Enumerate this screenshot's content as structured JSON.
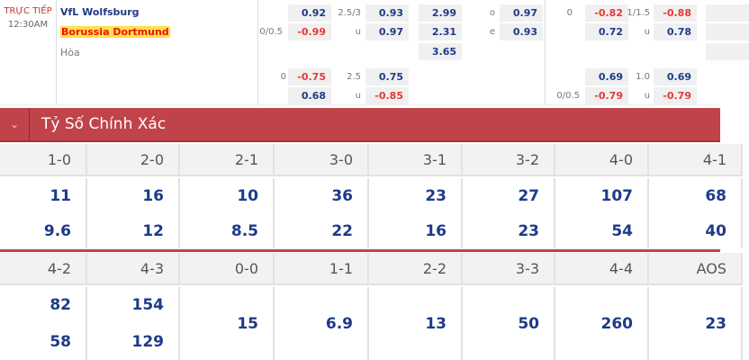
{
  "match": {
    "status": "TRỰC TIẾP",
    "time": "12:30AM",
    "home": "VfL Wolfsburg",
    "away": "Borussia Dortmund",
    "draw": "Hòa"
  },
  "odds": {
    "ft_hdp1": {
      "line": "0/0.5",
      "home": "0.92",
      "away": "-0.99"
    },
    "ft_ou1": {
      "line": "2.5/3",
      "over": "0.93",
      "under_label": "u",
      "under": "0.97"
    },
    "ft_1x2": {
      "home": "2.99",
      "away": "2.31",
      "draw": "3.65"
    },
    "ft_oe": {
      "odd_label": "o",
      "odd": "0.97",
      "even_label": "e",
      "even": "0.93"
    },
    "ft_hdp2": {
      "line": "0",
      "home": "-0.75",
      "away": "0.68"
    },
    "ft_ou2": {
      "line": "2.5",
      "over": "0.75",
      "under_label": "u",
      "under": "-0.85"
    },
    "h1_hdp1": {
      "line": "0",
      "home": "-0.82",
      "away": "0.72"
    },
    "h1_ou1": {
      "line": "1/1.5",
      "over": "-0.88",
      "under_label": "u",
      "under": "0.78"
    },
    "h1_hdp2": {
      "line": "0/0.5",
      "home": "0.69",
      "away": "-0.79"
    },
    "h1_ou2": {
      "line": "1.0",
      "over": "0.69",
      "under_label": "u",
      "under": "-0.79"
    }
  },
  "section": {
    "title": "Tỷ Số Chính Xác",
    "icon": "chevron-down-icon"
  },
  "scores_row1": [
    {
      "score": "1-0",
      "home": "11",
      "away": "9.6"
    },
    {
      "score": "2-0",
      "home": "16",
      "away": "12"
    },
    {
      "score": "2-1",
      "home": "10",
      "away": "8.5"
    },
    {
      "score": "3-0",
      "home": "36",
      "away": "22"
    },
    {
      "score": "3-1",
      "home": "23",
      "away": "16"
    },
    {
      "score": "3-2",
      "home": "27",
      "away": "23"
    },
    {
      "score": "4-0",
      "home": "107",
      "away": "54"
    },
    {
      "score": "4-1",
      "home": "68",
      "away": "40"
    }
  ],
  "scores_row2": [
    {
      "score": "4-2",
      "home": "82",
      "away": "58"
    },
    {
      "score": "4-3",
      "home": "154",
      "away": "129"
    },
    {
      "score": "0-0",
      "value": "15"
    },
    {
      "score": "1-1",
      "value": "6.9"
    },
    {
      "score": "2-2",
      "value": "13"
    },
    {
      "score": "3-3",
      "value": "50"
    },
    {
      "score": "4-4",
      "value": "260"
    },
    {
      "score": "AOS",
      "value": "23"
    }
  ]
}
